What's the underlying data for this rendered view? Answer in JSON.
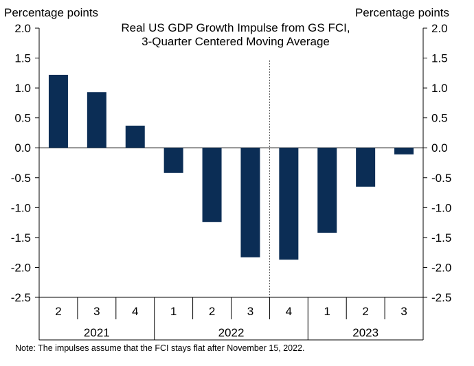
{
  "chart_data": {
    "type": "bar",
    "title": "Real US GDP Growth Impulse from GS FCI,",
    "subtitle": "3-Quarter Centered Moving Average",
    "ylabel_left": "Percentage points",
    "ylabel_right": "Percentage points",
    "ylim": [
      -2.5,
      2.0
    ],
    "yticks": [
      "2.0",
      "1.5",
      "1.0",
      "0.5",
      "0.0",
      "-0.5",
      "-1.0",
      "-1.5",
      "-2.0",
      "-2.5"
    ],
    "ytick_values": [
      2.0,
      1.5,
      1.0,
      0.5,
      0.0,
      -0.5,
      -1.0,
      -1.5,
      -2.0,
      -2.5
    ],
    "categories": [
      "2",
      "3",
      "4",
      "1",
      "2",
      "3",
      "4",
      "1",
      "2",
      "3"
    ],
    "years": [
      {
        "label": "2021",
        "span": 3
      },
      {
        "label": "2022",
        "span": 4
      },
      {
        "label": "2023",
        "span": 3
      }
    ],
    "values": [
      1.22,
      0.93,
      0.37,
      -0.42,
      -1.24,
      -1.83,
      -1.87,
      -1.42,
      -0.65,
      -0.11
    ],
    "forecast_divider_after_index": 5,
    "bar_color": "#0b2d55",
    "grid": false,
    "legend": "none"
  },
  "note": "Note: The impulses assume that the FCI stays flat after November 15, 2022."
}
